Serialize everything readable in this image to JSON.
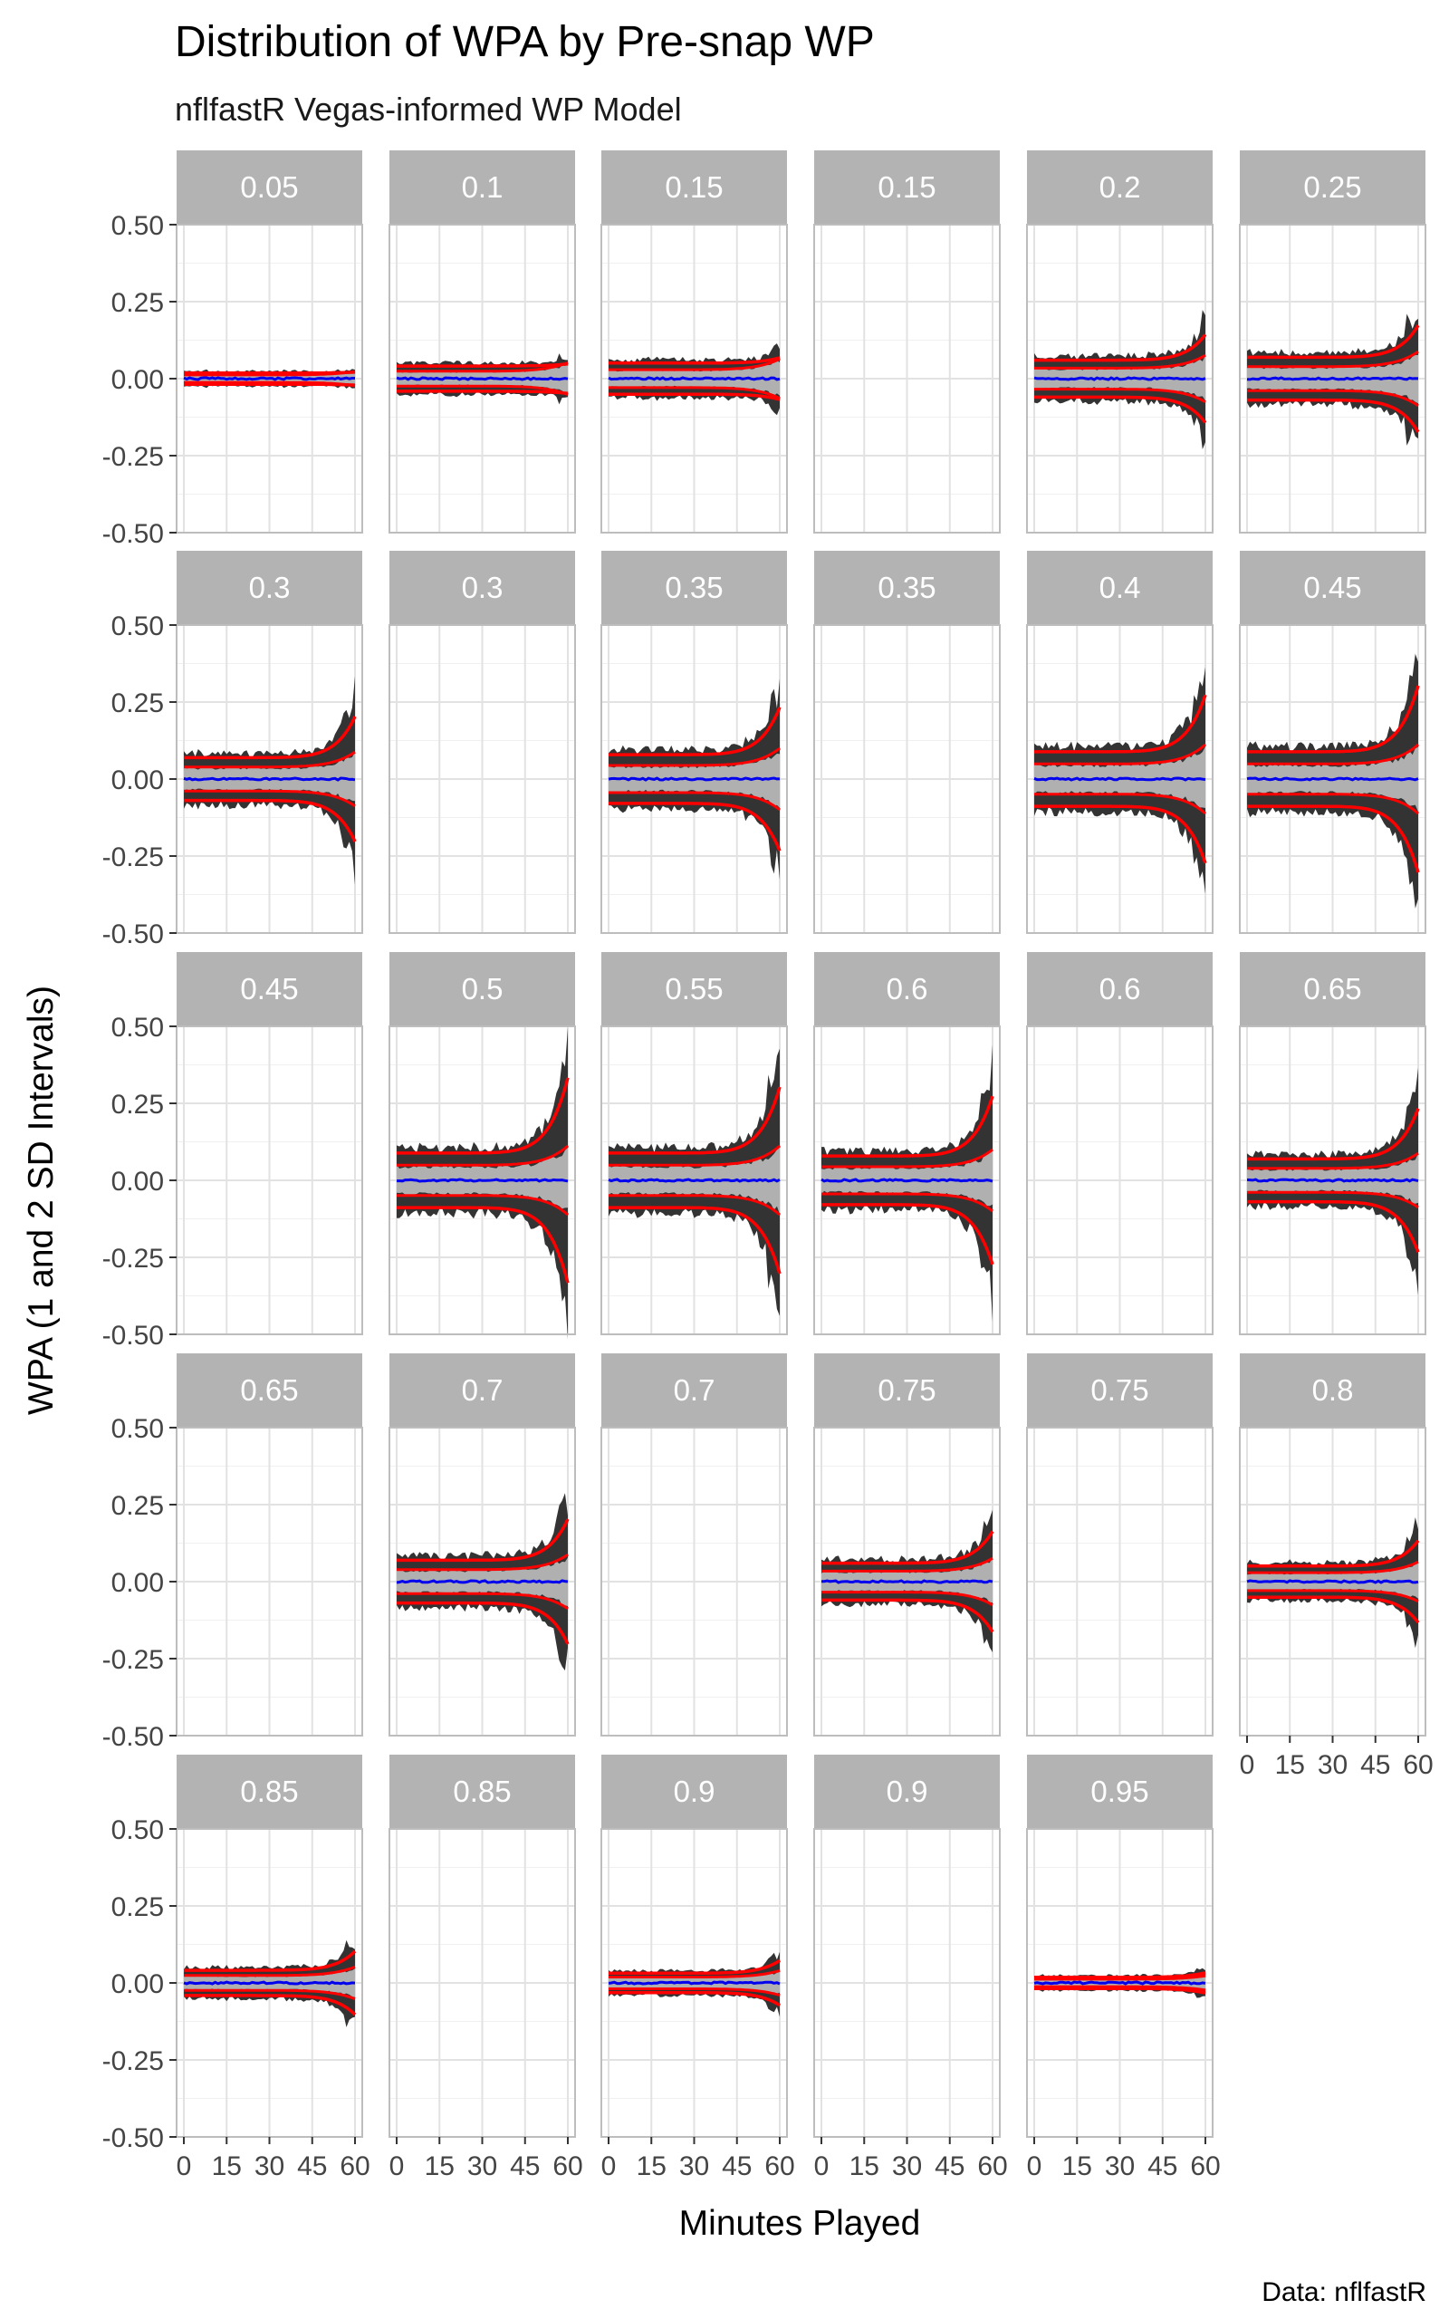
{
  "title": "Distribution of WPA by Pre-snap WP",
  "subtitle": "nflfastR Vegas-informed WP Model",
  "caption": "Data: nflfastR",
  "colors": {
    "strip_bg": "#b3b3b3",
    "strip_text": "#ffffff",
    "outer_band": "#333333",
    "inner_band": "#b0b0b0",
    "mean_line": "#0000ee",
    "fit_line": "#ff0000",
    "grid": "#e2e2e2",
    "panel_border": "#bdbdbd",
    "axis_text": "#444444"
  },
  "chart_data": {
    "type": "area",
    "facet_layout": "grid 5 rows x 6 columns, free scales off",
    "xlabel": "Minutes Played",
    "ylabel": "WPA (1 and 2 SD Intervals)",
    "xlim": [
      0,
      60
    ],
    "ylim": [
      -0.5,
      0.5
    ],
    "x_ticks": [
      "0",
      "15",
      "30",
      "45",
      "60"
    ],
    "y_ticks": [
      "0.50",
      "0.25",
      "0.00",
      "-0.25",
      "-0.50"
    ],
    "series_description": [
      "2 SD band",
      "1 SD band",
      "mean",
      "fitted 1 and 2 SD curves"
    ],
    "facets": [
      {
        "label": "0.05",
        "has_data": true,
        "sd": [
          0.008,
          0.018
        ]
      },
      {
        "label": "0.1",
        "has_data": true,
        "sd": [
          0.02,
          0.045
        ]
      },
      {
        "label": "0.15",
        "has_data": true,
        "sd": [
          0.025,
          0.065
        ]
      },
      {
        "label": "0.15",
        "has_data": false
      },
      {
        "label": "0.2",
        "has_data": true,
        "sd": [
          0.03,
          0.14
        ]
      },
      {
        "label": "0.25",
        "has_data": true,
        "sd": [
          0.035,
          0.17
        ]
      },
      {
        "label": "0.3",
        "has_data": true,
        "sd": [
          0.035,
          0.2
        ]
      },
      {
        "label": "0.3",
        "has_data": false
      },
      {
        "label": "0.35",
        "has_data": true,
        "sd": [
          0.04,
          0.23
        ]
      },
      {
        "label": "0.35",
        "has_data": false
      },
      {
        "label": "0.4",
        "has_data": true,
        "sd": [
          0.045,
          0.27
        ]
      },
      {
        "label": "0.45",
        "has_data": true,
        "sd": [
          0.045,
          0.3
        ]
      },
      {
        "label": "0.45",
        "has_data": false
      },
      {
        "label": "0.5",
        "has_data": true,
        "sd": [
          0.045,
          0.33
        ]
      },
      {
        "label": "0.55",
        "has_data": true,
        "sd": [
          0.045,
          0.3
        ]
      },
      {
        "label": "0.6",
        "has_data": true,
        "sd": [
          0.04,
          0.27
        ]
      },
      {
        "label": "0.6",
        "has_data": false
      },
      {
        "label": "0.65",
        "has_data": true,
        "sd": [
          0.035,
          0.23
        ]
      },
      {
        "label": "0.65",
        "has_data": false
      },
      {
        "label": "0.7",
        "has_data": true,
        "sd": [
          0.035,
          0.2
        ]
      },
      {
        "label": "0.7",
        "has_data": false
      },
      {
        "label": "0.75",
        "has_data": true,
        "sd": [
          0.03,
          0.16
        ]
      },
      {
        "label": "0.75",
        "has_data": false
      },
      {
        "label": "0.8",
        "has_data": true,
        "sd": [
          0.025,
          0.13
        ]
      },
      {
        "label": "0.85",
        "has_data": true,
        "sd": [
          0.02,
          0.1
        ]
      },
      {
        "label": "0.85",
        "has_data": false
      },
      {
        "label": "0.9",
        "has_data": true,
        "sd": [
          0.015,
          0.07
        ]
      },
      {
        "label": "0.9",
        "has_data": false
      },
      {
        "label": "0.95",
        "has_data": true,
        "sd": [
          0.008,
          0.03
        ]
      }
    ]
  }
}
